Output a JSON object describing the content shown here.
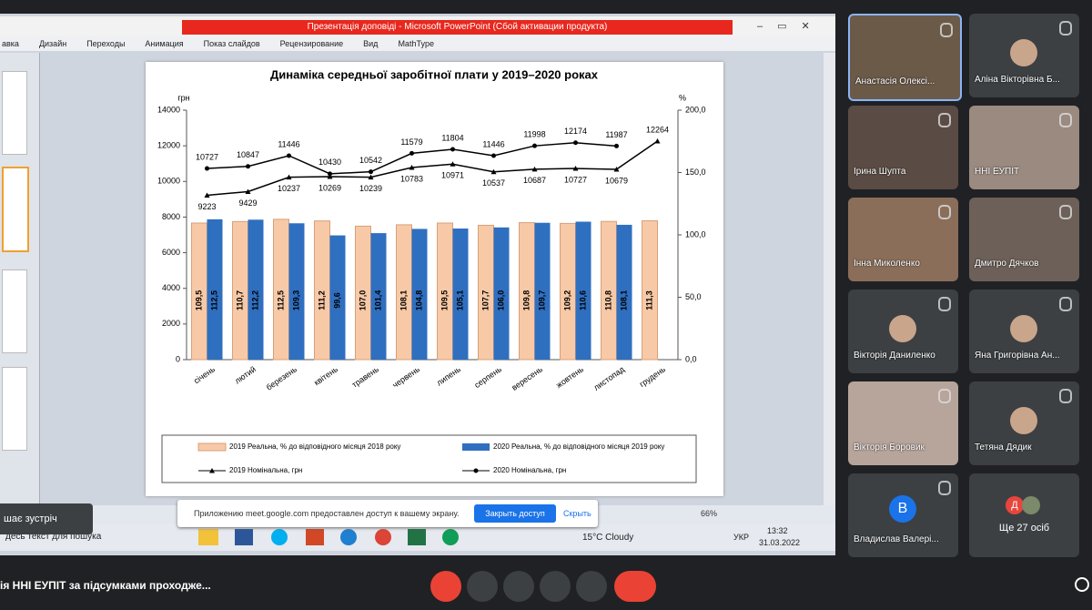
{
  "window": {
    "title": "Презентація доповіді - Microsoft PowerPoint (Сбой активации продукта)",
    "menu": [
      "авка",
      "Дизайн",
      "Переходы",
      "Анимация",
      "Показ слайдов",
      "Рецензирование",
      "Вид",
      "MathType"
    ]
  },
  "chart_data": {
    "type": "bar",
    "title": "Динаміка середньої заробітної плати у 2019–2020 роках",
    "y_label": "грн",
    "y2_label": "%",
    "categories": [
      "січень",
      "лютий",
      "березень",
      "квітень",
      "травень",
      "червень",
      "липень",
      "серпень",
      "вересень",
      "жовтень",
      "листопад",
      "грудень"
    ],
    "ylim": [
      0,
      14000
    ],
    "yticks": [
      0,
      2000,
      4000,
      6000,
      8000,
      10000,
      12000,
      14000
    ],
    "y2lim": [
      0,
      200
    ],
    "y2ticks": [
      {
        "value": 0,
        "label": "0,0"
      },
      {
        "value": 50,
        "label": "50,0"
      },
      {
        "value": 100,
        "label": "100,0"
      },
      {
        "value": 150,
        "label": "150,0"
      },
      {
        "value": 200,
        "label": "200,0"
      }
    ],
    "legend": "bottom",
    "series": [
      {
        "name": "2019 Реальна, % до відповідного місяця 2018 року",
        "type": "bar",
        "axis": "y2",
        "color": "#f8c9a6",
        "values": [
          109.5,
          110.7,
          112.5,
          111.2,
          107.0,
          108.1,
          109.5,
          107.7,
          109.8,
          109.2,
          110.8,
          111.3
        ],
        "value_labels": [
          "109,5",
          "110,7",
          "112,5",
          "111,2",
          "107,0",
          "108,1",
          "109,5",
          "107,7",
          "109,8",
          "109,2",
          "110,8",
          "111,3"
        ]
      },
      {
        "name": "2020 Реальна, % до відповідного місяця 2019 року",
        "type": "bar",
        "axis": "y2",
        "color": "#2f6fc0",
        "values": [
          112.5,
          112.2,
          109.3,
          99.6,
          101.4,
          104.8,
          105.1,
          106.0,
          109.7,
          110.6,
          108.1,
          null
        ],
        "value_labels": [
          "112,5",
          "112,2",
          "109,3",
          "99,6",
          "101,4",
          "104,8",
          "105,1",
          "106,0",
          "109,7",
          "110,6",
          "108,1",
          null
        ]
      },
      {
        "name": "2019 Номінальна, грн",
        "type": "line",
        "marker": "triangle",
        "color": "#000000",
        "values": [
          9223,
          9429,
          10237,
          10269,
          10239,
          10783,
          10971,
          10537,
          10687,
          10727,
          10679,
          12264
        ]
      },
      {
        "name": "2020 Номінальна, грн",
        "type": "line",
        "marker": "circle",
        "color": "#000000",
        "values": [
          10727,
          10847,
          11446,
          10430,
          10542,
          11579,
          11804,
          11446,
          11998,
          12174,
          11987,
          null
        ]
      }
    ]
  },
  "status": {
    "zoom": "66%"
  },
  "share_banner": {
    "text": "Приложению meet.google.com предоставлен доступ к вашему экрану.",
    "stop": "Закрыть доступ",
    "hide": "Скрыть"
  },
  "tooltip": "шає зустріч",
  "taskbar": {
    "search": "десь текст для пошука",
    "weather": "15°C Cloudy",
    "lang": "УКР",
    "time": "13:32",
    "date": "31.03.2022"
  },
  "participants": [
    {
      "name": "Анастасія Олексі..."
    },
    {
      "name": "Аліна Вікторівна Б..."
    },
    {
      "name": "Ірина Шупта"
    },
    {
      "name": "ННІ ЕУПІТ"
    },
    {
      "name": "Інна Миколенко"
    },
    {
      "name": "Дмитро Дячков"
    },
    {
      "name": "Вікторія Даниленко"
    },
    {
      "name": "Яна Григорівна Ан..."
    },
    {
      "name": "Вікторія Боровик"
    },
    {
      "name": "Тетяна Дядик"
    },
    {
      "name": "Владислав Валері...",
      "avatar": "В"
    }
  ],
  "more": {
    "avatar": "Д",
    "text": "Ще 27 осіб"
  },
  "meeting_title": "ія ННІ ЕУПІТ за підсумками проходже..."
}
